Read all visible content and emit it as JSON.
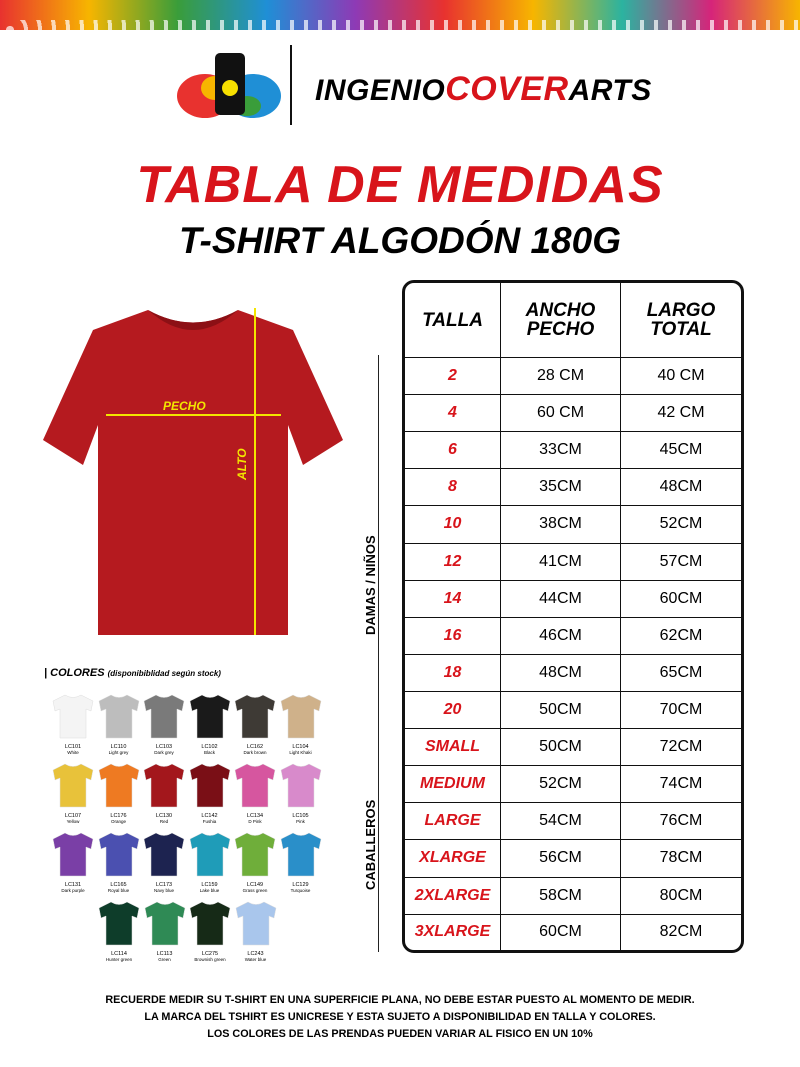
{
  "brand": {
    "part1": "INGENIO",
    "part2": "COVER",
    "part3": "ARTS"
  },
  "title": "TABLA DE MEDIDAS",
  "subtitle": "T-SHIRT ALGODÓN 180G",
  "shirt": {
    "color": "#b51a1f",
    "pecho_label": "PECHO",
    "alto_label": "ALTO",
    "measure_color": "#f2e600"
  },
  "groups": {
    "kids": "DAMAS / NIÑOS",
    "men": "CABALLEROS"
  },
  "table": {
    "headers": [
      "TALLA",
      "ANCHO PECHO",
      "LARGO TOTAL"
    ],
    "rows": [
      [
        "2",
        "28 CM",
        "40 CM"
      ],
      [
        "4",
        "60 CM",
        "42 CM"
      ],
      [
        "6",
        "33CM",
        "45CM"
      ],
      [
        "8",
        "35CM",
        "48CM"
      ],
      [
        "10",
        "38CM",
        "52CM"
      ],
      [
        "12",
        "41CM",
        "57CM"
      ],
      [
        "14",
        "44CM",
        "60CM"
      ],
      [
        "16",
        "46CM",
        "62CM"
      ],
      [
        "18",
        "48CM",
        "65CM"
      ],
      [
        "20",
        "50CM",
        "70CM"
      ],
      [
        "SMALL",
        "50CM",
        "72CM"
      ],
      [
        "MEDIUM",
        "52CM",
        "74CM"
      ],
      [
        "LARGE",
        "54CM",
        "76CM"
      ],
      [
        "XLARGE",
        "56CM",
        "78CM"
      ],
      [
        "2XLARGE",
        "58CM",
        "80CM"
      ],
      [
        "3XLARGE",
        "60CM",
        "82CM"
      ]
    ]
  },
  "colors": {
    "heading": "| COLORES",
    "note": "(disponibiblidad según stock)",
    "items": [
      {
        "code": "LC101",
        "name": "White",
        "hex": "#f4f4f4"
      },
      {
        "code": "LC110",
        "name": "Light grey",
        "hex": "#bdbdbd"
      },
      {
        "code": "LC103",
        "name": "Dark grey",
        "hex": "#7a7a7a"
      },
      {
        "code": "LC102",
        "name": "Black",
        "hex": "#1a1a1a"
      },
      {
        "code": "LC162",
        "name": "Dark brown",
        "hex": "#3e3a35"
      },
      {
        "code": "LC104",
        "name": "Light Khaki",
        "hex": "#cfb18a"
      },
      {
        "code": "LC107",
        "name": "Yellow",
        "hex": "#e8c23a"
      },
      {
        "code": "LC176",
        "name": "Orange",
        "hex": "#ee7a22"
      },
      {
        "code": "LC130",
        "name": "Red",
        "hex": "#a3171c"
      },
      {
        "code": "LC142",
        "name": "Fushia",
        "hex": "#7a0f16"
      },
      {
        "code": "LC134",
        "name": "D Pink",
        "hex": "#d6569f"
      },
      {
        "code": "LC105",
        "name": "Pink",
        "hex": "#d88acb"
      },
      {
        "code": "LC131",
        "name": "Dark purple",
        "hex": "#7a3fa6"
      },
      {
        "code": "LC165",
        "name": "Royal blue",
        "hex": "#4b50b0"
      },
      {
        "code": "LC173",
        "name": "Navy blue",
        "hex": "#1d2350"
      },
      {
        "code": "LC159",
        "name": "Lake blue",
        "hex": "#1f9cb8"
      },
      {
        "code": "LC149",
        "name": "Grass green",
        "hex": "#6fae3a"
      },
      {
        "code": "LC129",
        "name": "Turquoise",
        "hex": "#2a8fc9"
      },
      {
        "code": "LC114",
        "name": "Hunter green",
        "hex": "#0e3d2a"
      },
      {
        "code": "LC113",
        "name": "Green",
        "hex": "#2f8a55"
      },
      {
        "code": "LC275",
        "name": "Brownish green",
        "hex": "#162a17"
      },
      {
        "code": "LC243",
        "name": "Water blue",
        "hex": "#a9c6ec"
      }
    ]
  },
  "footer": [
    "RECUERDE MEDIR SU T-SHIRT EN UNA SUPERFICIE PLANA, NO DEBE ESTAR PUESTO AL MOMENTO DE MEDIR.",
    "LA MARCA DEL TSHIRT ES UNICRESE Y ESTA SUJETO A DISPONIBILIDAD EN TALLA Y COLORES.",
    "LOS COLORES DE LAS PRENDAS PUEDEN VARIAR AL FISICO EN UN 10%"
  ],
  "accent": "#d8141b"
}
